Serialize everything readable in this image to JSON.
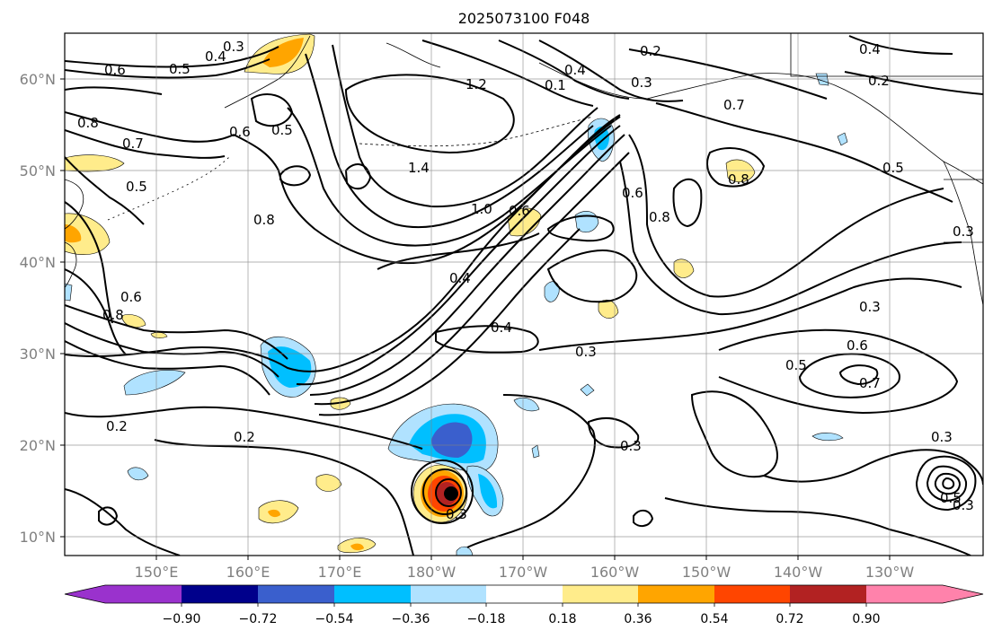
{
  "title": "2025073100 F048",
  "axes": {
    "lon_ticks": [
      "150°E",
      "160°E",
      "170°E",
      "180°W",
      "170°W",
      "160°W",
      "150°W",
      "140°W",
      "130°W"
    ],
    "lat_ticks": [
      "60°N",
      "50°N",
      "40°N",
      "30°N",
      "20°N",
      "10°N"
    ]
  },
  "colorbar": {
    "labels": [
      "−0.90",
      "−0.72",
      "−0.54",
      "−0.36",
      "−0.18",
      "0.18",
      "0.36",
      "0.54",
      "0.72",
      "0.90"
    ],
    "colors": [
      "#9a32cd",
      "#00008b",
      "#3a5fcd",
      "#00bfff",
      "#b0e2ff",
      "#ffffff",
      "#ffec8b",
      "#ffa500",
      "#ff4500",
      "#b22222",
      "#ff82ab"
    ]
  },
  "contour_labels": [
    "0.3",
    "0.4",
    "0.5",
    "0.6",
    "0.8",
    "0.7",
    "0.5",
    "0.6",
    "0.5",
    "1.2",
    "0.1",
    "0.4",
    "0.3",
    "0.2",
    "0.4",
    "0.2",
    "0.7",
    "0.5",
    "1.4",
    "0.8",
    "0.8",
    "0.8",
    "0.6",
    "1.0",
    "0.6",
    "0.4",
    "0.3",
    "0.4",
    "0.3",
    "0.2",
    "0.2",
    "0.3",
    "0.3",
    "0.5",
    "0.6",
    "0.7",
    "0.3",
    "0.3",
    "0.5",
    "0.3",
    "0.6",
    "0.8"
  ]
}
